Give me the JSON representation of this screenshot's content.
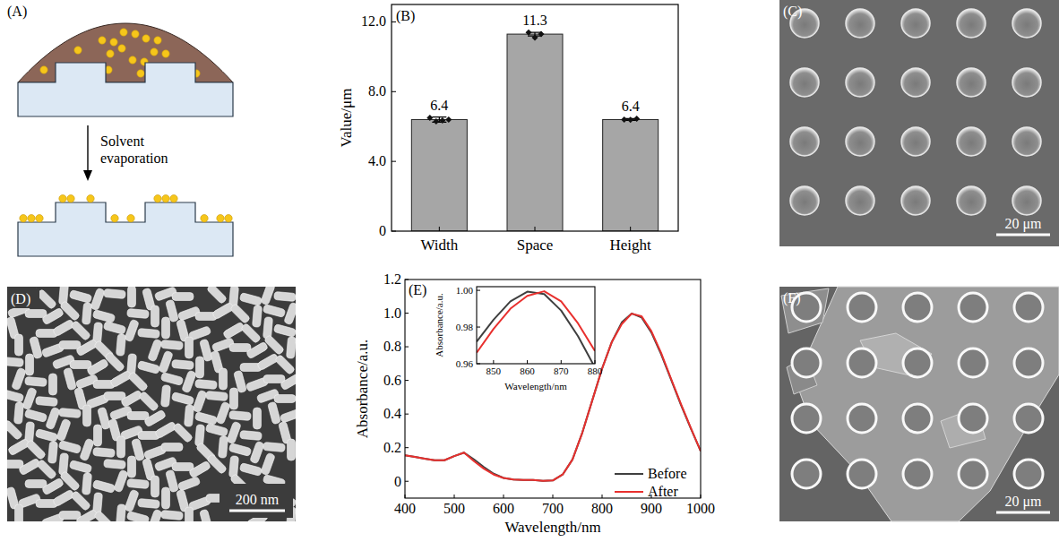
{
  "panels": {
    "A": {
      "label": "(A)",
      "arrow_text": "Solvent evaporation"
    },
    "C": {
      "label": "(C)",
      "scale_bar": "20 μm"
    },
    "D": {
      "label": "(D)",
      "scale_bar": "200 nm"
    },
    "F": {
      "label": "(F)",
      "scale_bar": "20 μm"
    }
  },
  "chart_data": [
    {
      "type": "bar",
      "panel_label": "(B)",
      "y_label": "Value/μm",
      "categories": [
        "Width",
        "Space",
        "Height"
      ],
      "values": [
        6.4,
        11.3,
        6.4
      ],
      "errors": [
        0.15,
        0.1,
        0.05
      ],
      "points": [
        [
          6.5,
          6.3,
          6.35,
          6.4
        ],
        [
          11.4,
          11.1,
          11.3
        ],
        [
          6.4,
          6.38,
          6.45
        ]
      ],
      "color": "#a6a6a6",
      "ylim": [
        0,
        13
      ],
      "yticks": [
        0,
        {
          "value": 4,
          "label": "4.0"
        },
        {
          "value": 8,
          "label": "8.0"
        },
        {
          "value": 12,
          "label": "12.0"
        }
      ],
      "data_labels": true
    },
    {
      "type": "line",
      "panel_label": "(E)",
      "x_label": "Wavelength/nm",
      "y_label": "Absorbance/a.u.",
      "x": [
        400,
        420,
        440,
        460,
        480,
        500,
        520,
        540,
        560,
        580,
        600,
        620,
        640,
        660,
        680,
        700,
        720,
        740,
        760,
        780,
        800,
        820,
        840,
        860,
        880,
        900,
        920,
        940,
        960,
        980,
        1000
      ],
      "series": [
        {
          "name": "Before",
          "color": "#3f3f3f",
          "values": [
            0.155,
            0.145,
            0.135,
            0.125,
            0.125,
            0.15,
            0.17,
            0.13,
            0.085,
            0.045,
            0.02,
            0.01,
            0.008,
            0.008,
            0.002,
            0.005,
            0.04,
            0.13,
            0.29,
            0.48,
            0.67,
            0.83,
            0.945,
            0.998,
            0.975,
            0.885,
            0.755,
            0.605,
            0.455,
            0.315,
            0.18
          ]
        },
        {
          "name": "After",
          "color": "#e8302e",
          "values": [
            0.155,
            0.145,
            0.135,
            0.125,
            0.125,
            0.15,
            0.17,
            0.12,
            0.075,
            0.04,
            0.02,
            0.01,
            0.008,
            0.008,
            0.002,
            0.005,
            0.04,
            0.13,
            0.29,
            0.48,
            0.67,
            0.83,
            0.935,
            0.997,
            0.982,
            0.893,
            0.762,
            0.61,
            0.46,
            0.318,
            0.18
          ]
        }
      ],
      "xlim": [
        400,
        1000
      ],
      "xticks": [
        400,
        500,
        600,
        700,
        800,
        900,
        1000
      ],
      "ylim": [
        -0.1,
        1.2
      ],
      "yticks": [
        0,
        0.2,
        0.4,
        0.6,
        0.8,
        {
          "value": 1,
          "label": "1.0"
        },
        1.2
      ],
      "legend": "lower right",
      "inset": {
        "x_label": "Wavelength/nm",
        "y_label": "Absorbance/a.u.",
        "x": [
          845,
          850,
          855,
          860,
          865,
          870,
          875,
          880
        ],
        "series": [
          {
            "name": "Before",
            "color": "#3f3f3f",
            "values": [
              0.972,
              0.984,
              0.994,
              0.9993,
              0.998,
              0.989,
              0.975,
              0.958
            ]
          },
          {
            "name": "After",
            "color": "#e8302e",
            "values": [
              0.966,
              0.979,
              0.99,
              0.997,
              0.9995,
              0.994,
              0.982,
              0.967
            ]
          }
        ],
        "xlim": [
          845,
          880
        ],
        "xticks": [
          850,
          860,
          870,
          880
        ],
        "ylim": [
          0.96,
          1.002
        ],
        "yticks": [
          0.96,
          0.98,
          {
            "value": 1,
            "label": "1.00"
          }
        ]
      }
    }
  ]
}
